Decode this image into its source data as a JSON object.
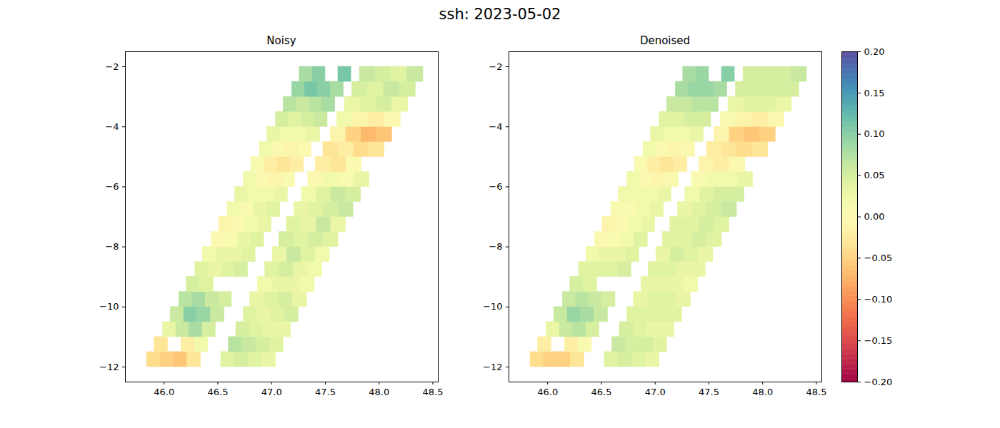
{
  "title": "ssh: 2023-05-02",
  "colorbar": {
    "color": "spectral",
    "range": [
      -0.2,
      0.2
    ],
    "ticks": [
      {
        "value": -0.2,
        "label": "−0.20"
      },
      {
        "value": -0.15,
        "label": "−0.15"
      },
      {
        "value": -0.1,
        "label": "−0.10"
      },
      {
        "value": -0.05,
        "label": "−0.05"
      },
      {
        "value": 0,
        "label": "0.00"
      },
      {
        "value": 0.05,
        "label": "0.05"
      },
      {
        "value": 0.1,
        "label": "0.10"
      },
      {
        "value": 0.15,
        "label": "0.15"
      },
      {
        "value": 0.2,
        "label": "0.20"
      }
    ]
  },
  "chart_data": [
    {
      "type": "heatmap",
      "title": "Noisy",
      "xlim": [
        45.64,
        48.55
      ],
      "xticks": [
        {
          "value": 46,
          "label": "46.0"
        },
        46.5,
        {
          "value": 47,
          "label": "47.0"
        },
        47.5,
        {
          "value": 48,
          "label": "48.0"
        },
        48.5
      ],
      "ylim": [
        -12.5,
        -1.5
      ],
      "yticks": [
        {
          "value": -12,
          "label": "−12"
        },
        {
          "value": -10,
          "label": "−10"
        },
        {
          "value": -8,
          "label": "−8"
        },
        {
          "value": -6,
          "label": "−6"
        },
        {
          "value": -4,
          "label": "−4"
        },
        {
          "value": -2,
          "label": "−2"
        }
      ],
      "lat_edges": [
        -12,
        -11.5,
        -11,
        -10.5,
        -10,
        -9.5,
        -9,
        -8.5,
        -8,
        -7.5,
        -7,
        -6.5,
        -6,
        -5.5,
        -5,
        -4.5,
        -4,
        -3.5,
        -3,
        -2.5,
        -2
      ],
      "swaths": [
        {
          "lon_west": [
            45.84,
            45.91,
            45.99,
            46.06,
            46.14,
            46.21,
            46.29,
            46.36,
            46.44,
            46.51,
            46.59,
            46.66,
            46.74,
            46.81,
            46.89,
            46.96,
            47.04,
            47.11,
            47.19,
            47.26
          ],
          "lon_east": [
            46.34,
            46.41,
            46.48,
            46.56,
            46.63,
            46.71,
            46.78,
            46.85,
            46.93,
            47.0,
            47.08,
            47.15,
            47.22,
            47.3,
            47.37,
            47.45,
            47.52,
            47.59,
            47.67,
            47.74
          ],
          "values": [
            [
              -0.04,
              -0.05,
              -0.06,
              -0.03
            ],
            [
              -0.03,
              null,
              -0.02,
              0.02
            ],
            [
              0.03,
              0.06,
              0.08,
              0.05
            ],
            [
              0.06,
              0.1,
              0.09,
              0.06
            ],
            [
              0.07,
              0.08,
              0.06,
              0.05
            ],
            [
              0.05,
              0.04,
              null,
              null
            ],
            [
              0.04,
              0.03,
              0.04,
              0.05
            ],
            [
              0.02,
              0.03,
              0.03,
              0.04
            ],
            [
              0.0,
              0.01,
              0.03,
              0.04
            ],
            [
              -0.01,
              0.0,
              0.02,
              0.03
            ],
            [
              0.02,
              0.01,
              0.03,
              0.04
            ],
            [
              0.03,
              0.02,
              0.02,
              0.03
            ],
            [
              0.02,
              0.0,
              -0.01,
              0.01
            ],
            [
              0.01,
              -0.02,
              -0.03,
              -0.02
            ],
            [
              0.02,
              0.0,
              -0.01,
              0.0
            ],
            [
              0.03,
              0.02,
              0.02,
              0.03
            ],
            [
              0.05,
              0.04,
              0.05,
              0.06
            ],
            [
              0.07,
              0.06,
              0.07,
              0.08
            ],
            [
              0.09,
              0.11,
              0.1,
              0.08
            ],
            [
              0.08,
              0.1,
              null,
              0.11
            ]
          ]
        },
        {
          "lon_west": [
            46.53,
            46.6,
            46.67,
            46.74,
            46.8,
            46.87,
            46.94,
            47.01,
            47.07,
            47.14,
            47.21,
            47.28,
            47.34,
            47.41,
            47.48,
            47.55,
            47.61,
            47.68,
            47.75,
            47.82
          ],
          "lon_east": [
            47.04,
            47.11,
            47.18,
            47.25,
            47.33,
            47.4,
            47.47,
            47.54,
            47.62,
            47.69,
            47.76,
            47.83,
            47.91,
            47.98,
            48.05,
            48.12,
            48.2,
            48.27,
            48.34,
            48.41
          ],
          "values": [
            [
              0.04,
              0.05,
              0.04,
              0.03
            ],
            [
              0.07,
              0.06,
              0.05,
              0.04
            ],
            [
              0.05,
              0.04,
              0.03,
              0.03
            ],
            [
              0.04,
              0.03,
              0.04,
              0.05
            ],
            [
              0.03,
              0.04,
              0.05,
              0.03
            ],
            [
              0.02,
              0.03,
              0.03,
              0.02
            ],
            [
              0.04,
              0.05,
              0.03,
              0.02
            ],
            [
              0.03,
              0.06,
              0.04,
              0.02
            ],
            [
              0.05,
              0.04,
              0.05,
              0.04
            ],
            [
              0.04,
              0.03,
              0.06,
              0.03
            ],
            [
              0.03,
              0.04,
              0.05,
              0.06
            ],
            [
              0.02,
              0.04,
              0.06,
              0.05
            ],
            [
              0.0,
              0.02,
              0.01,
              0.03
            ],
            [
              -0.02,
              -0.03,
              0.0,
              null
            ],
            [
              -0.03,
              -0.02,
              -0.04,
              -0.03
            ],
            [
              -0.01,
              -0.05,
              -0.07,
              -0.06
            ],
            [
              0.02,
              -0.01,
              -0.02,
              0.0
            ],
            [
              0.03,
              0.04,
              0.05,
              0.03
            ],
            [
              0.05,
              0.04,
              0.06,
              0.05
            ],
            [
              0.06,
              0.05,
              0.04,
              0.06
            ]
          ]
        }
      ]
    },
    {
      "type": "heatmap",
      "title": "Denoised",
      "xlim": [
        45.64,
        48.55
      ],
      "xticks": [
        {
          "value": 46,
          "label": "46.0"
        },
        46.5,
        {
          "value": 47,
          "label": "47.0"
        },
        47.5,
        {
          "value": 48,
          "label": "48.0"
        },
        48.5
      ],
      "ylim": [
        -12.5,
        -1.5
      ],
      "yticks": [
        {
          "value": -12,
          "label": "−12"
        },
        {
          "value": -10,
          "label": "−10"
        },
        {
          "value": -8,
          "label": "−8"
        },
        {
          "value": -6,
          "label": "−6"
        },
        {
          "value": -4,
          "label": "−4"
        },
        {
          "value": -2,
          "label": "−2"
        }
      ],
      "lat_edges": [
        -12,
        -11.5,
        -11,
        -10.5,
        -10,
        -9.5,
        -9,
        -8.5,
        -8,
        -7.5,
        -7,
        -6.5,
        -6,
        -5.5,
        -5,
        -4.5,
        -4,
        -3.5,
        -3,
        -2.5,
        -2
      ],
      "swaths": [
        {
          "lon_west": [
            45.84,
            45.91,
            45.99,
            46.06,
            46.14,
            46.21,
            46.29,
            46.36,
            46.44,
            46.51,
            46.59,
            46.66,
            46.74,
            46.81,
            46.89,
            46.96,
            47.04,
            47.11,
            47.19,
            47.26
          ],
          "lon_east": [
            46.34,
            46.41,
            46.48,
            46.56,
            46.63,
            46.71,
            46.78,
            46.85,
            46.93,
            47.0,
            47.08,
            47.15,
            47.22,
            47.3,
            47.37,
            47.45,
            47.52,
            47.59,
            47.67,
            47.74
          ],
          "values": [
            [
              -0.04,
              -0.05,
              -0.05,
              -0.03
            ],
            [
              -0.02,
              null,
              -0.02,
              0.01
            ],
            [
              0.03,
              0.06,
              0.07,
              0.05
            ],
            [
              0.06,
              0.09,
              0.08,
              0.06
            ],
            [
              0.06,
              0.07,
              0.06,
              0.05
            ],
            [
              0.05,
              0.04,
              null,
              null
            ],
            [
              0.04,
              0.04,
              0.04,
              0.05
            ],
            [
              0.02,
              0.03,
              0.03,
              0.04
            ],
            [
              0.0,
              0.01,
              0.02,
              0.04
            ],
            [
              -0.01,
              0.0,
              0.02,
              0.03
            ],
            [
              0.01,
              0.01,
              0.02,
              0.03
            ],
            [
              0.02,
              0.02,
              0.02,
              0.03
            ],
            [
              0.02,
              0.0,
              -0.01,
              0.01
            ],
            [
              0.01,
              -0.02,
              -0.03,
              -0.02
            ],
            [
              0.02,
              0.0,
              -0.01,
              0.0
            ],
            [
              0.03,
              0.02,
              0.02,
              0.03
            ],
            [
              0.04,
              0.04,
              0.05,
              0.05
            ],
            [
              0.06,
              0.06,
              0.07,
              0.07
            ],
            [
              0.08,
              0.09,
              0.09,
              0.08
            ],
            [
              0.08,
              0.09,
              null,
              0.1
            ]
          ]
        },
        {
          "lon_west": [
            46.53,
            46.6,
            46.67,
            46.74,
            46.8,
            46.87,
            46.94,
            47.01,
            47.07,
            47.14,
            47.21,
            47.28,
            47.34,
            47.41,
            47.48,
            47.55,
            47.61,
            47.68,
            47.75,
            47.82
          ],
          "lon_east": [
            47.04,
            47.11,
            47.18,
            47.25,
            47.33,
            47.4,
            47.47,
            47.54,
            47.62,
            47.69,
            47.76,
            47.83,
            47.91,
            47.98,
            48.05,
            48.12,
            48.2,
            48.27,
            48.34,
            48.41
          ],
          "values": [
            [
              0.04,
              0.05,
              0.04,
              0.03
            ],
            [
              0.06,
              0.05,
              0.05,
              0.04
            ],
            [
              0.05,
              0.04,
              0.03,
              0.03
            ],
            [
              0.04,
              0.04,
              0.04,
              0.04
            ],
            [
              0.03,
              0.04,
              0.04,
              0.03
            ],
            [
              0.03,
              0.03,
              0.03,
              0.02
            ],
            [
              0.04,
              0.04,
              0.03,
              0.03
            ],
            [
              0.03,
              0.05,
              0.04,
              0.03
            ],
            [
              0.04,
              0.04,
              0.05,
              0.04
            ],
            [
              0.04,
              0.04,
              0.05,
              0.04
            ],
            [
              0.03,
              0.04,
              0.05,
              0.06
            ],
            [
              0.02,
              0.04,
              0.05,
              0.05
            ],
            [
              0.01,
              0.02,
              0.02,
              0.03
            ],
            [
              -0.01,
              -0.02,
              0.0,
              null
            ],
            [
              -0.02,
              -0.03,
              -0.04,
              -0.03
            ],
            [
              -0.01,
              -0.05,
              -0.06,
              -0.05
            ],
            [
              0.01,
              -0.01,
              -0.02,
              0.0
            ],
            [
              0.03,
              0.04,
              0.04,
              0.03
            ],
            [
              0.05,
              0.05,
              0.05,
              0.05
            ],
            [
              0.05,
              0.05,
              0.05,
              0.06
            ]
          ]
        }
      ]
    }
  ]
}
